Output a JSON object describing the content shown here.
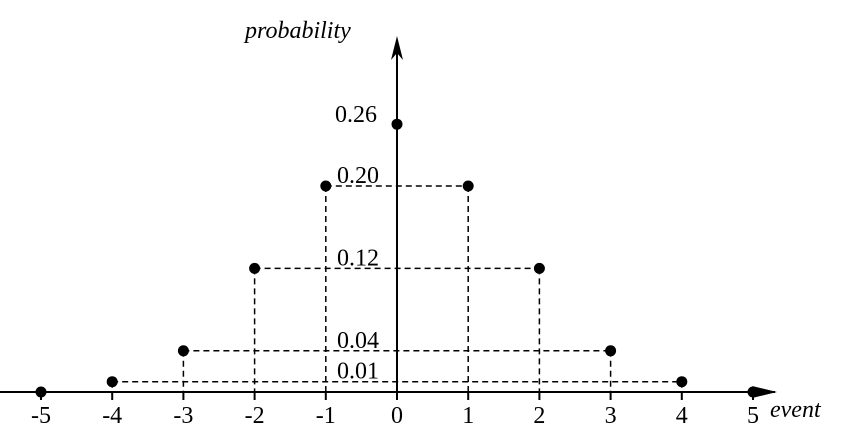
{
  "chart_data": {
    "type": "scatter",
    "xlabel": "event",
    "ylabel": "probability",
    "x_ticks": [
      "-5",
      "-4",
      "-3",
      "-2",
      "-1",
      "0",
      "1",
      "2",
      "3",
      "4",
      "5"
    ],
    "points": [
      {
        "x": -5,
        "y": 0.0
      },
      {
        "x": -4,
        "y": 0.01
      },
      {
        "x": -3,
        "y": 0.04
      },
      {
        "x": -2,
        "y": 0.12
      },
      {
        "x": -1,
        "y": 0.2
      },
      {
        "x": 0,
        "y": 0.26
      },
      {
        "x": 1,
        "y": 0.2
      },
      {
        "x": 2,
        "y": 0.12
      },
      {
        "x": 3,
        "y": 0.04
      },
      {
        "x": 4,
        "y": 0.01
      },
      {
        "x": 5,
        "y": 0.0
      }
    ],
    "value_labels": [
      {
        "value": 0.26,
        "text": "0.26"
      },
      {
        "value": 0.2,
        "text": "0.20"
      },
      {
        "value": 0.12,
        "text": "0.12"
      },
      {
        "value": 0.04,
        "text": "0.04"
      },
      {
        "value": 0.01,
        "text": "0.01"
      }
    ],
    "guide_pairs": [
      [
        -4,
        4
      ],
      [
        -3,
        3
      ],
      [
        -2,
        2
      ],
      [
        -1,
        1
      ]
    ],
    "xlim": [
      -5,
      5
    ],
    "grid": false,
    "color": "#000000"
  }
}
